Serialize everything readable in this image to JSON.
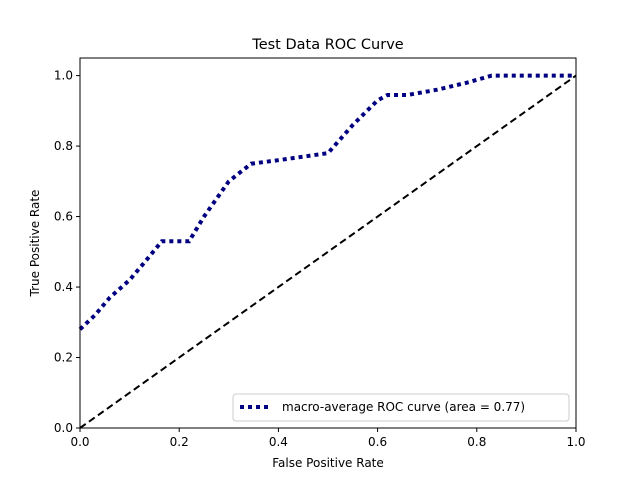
{
  "chart_data": {
    "type": "line",
    "title": "Test Data ROC Curve",
    "xlabel": "False Positive Rate",
    "ylabel": "True Positive Rate",
    "xlim": [
      0.0,
      1.0
    ],
    "ylim": [
      0.0,
      1.05
    ],
    "xticks": [
      0.0,
      0.2,
      0.4,
      0.6,
      0.8,
      1.0
    ],
    "yticks": [
      0.0,
      0.2,
      0.4,
      0.6,
      0.8,
      1.0
    ],
    "xtick_labels": [
      "0.0",
      "0.2",
      "0.4",
      "0.6",
      "0.8",
      "1.0"
    ],
    "ytick_labels": [
      "0.0",
      "0.2",
      "0.4",
      "0.6",
      "0.8",
      "1.0"
    ],
    "grid": false,
    "legend_position": "lower-right",
    "series": [
      {
        "name": "macro-average ROC curve (area = 0.77)",
        "color": "#000080",
        "line_style": "dotted",
        "x": [
          0.0,
          0.03,
          0.06,
          0.1,
          0.13,
          0.165,
          0.22,
          0.25,
          0.3,
          0.345,
          0.4,
          0.45,
          0.5,
          0.55,
          0.6,
          0.62,
          0.66,
          0.72,
          0.78,
          0.83,
          0.86,
          0.9,
          0.95,
          1.0
        ],
        "y": [
          0.28,
          0.32,
          0.37,
          0.42,
          0.47,
          0.53,
          0.53,
          0.6,
          0.7,
          0.75,
          0.76,
          0.77,
          0.78,
          0.86,
          0.93,
          0.945,
          0.945,
          0.96,
          0.98,
          1.0,
          1.0,
          1.0,
          1.0,
          1.0
        ]
      },
      {
        "color": "#000000",
        "line_style": "dashed",
        "x": [
          0.0,
          1.0
        ],
        "y": [
          0.0,
          1.0
        ]
      }
    ]
  }
}
